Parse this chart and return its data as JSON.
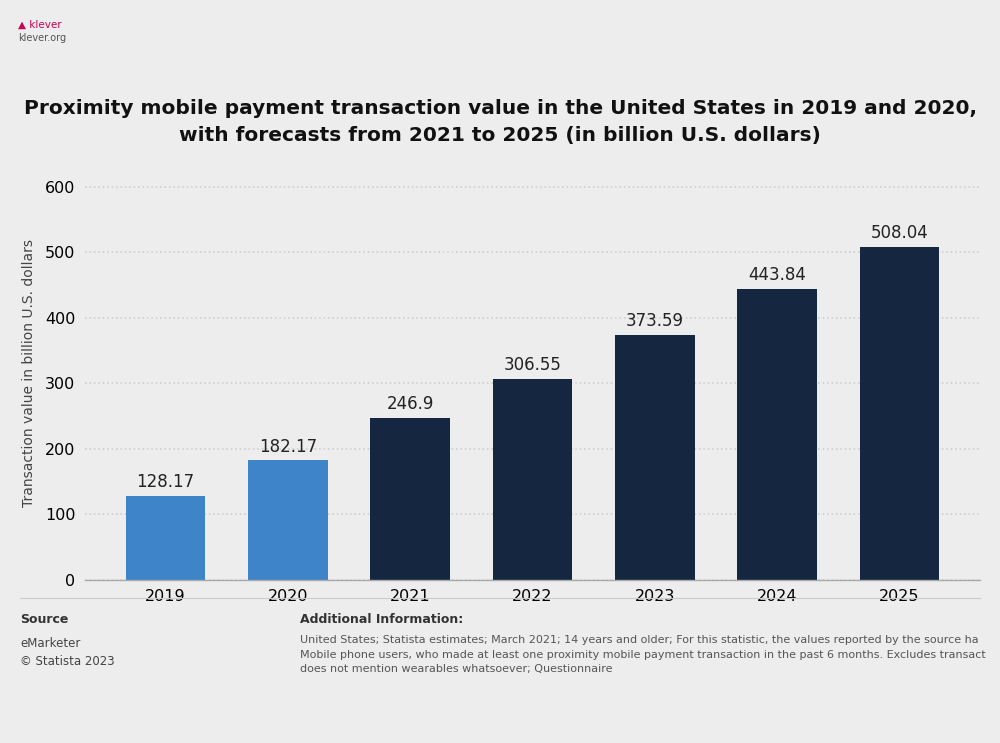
{
  "categories": [
    "2019",
    "2020",
    "2021",
    "2022",
    "2023",
    "2024",
    "2025"
  ],
  "values": [
    128.17,
    182.17,
    246.9,
    306.55,
    373.59,
    443.84,
    508.04
  ],
  "bar_colors": [
    "#3d85c8",
    "#3d85c8",
    "#152740",
    "#152740",
    "#152740",
    "#152740",
    "#152740"
  ],
  "title": "Proximity mobile payment transaction value in the United States in 2019 and 2020,\nwith forecasts from 2021 to 2025 (in billion U.S. dollars)",
  "ylabel": "Transaction value in billion U.S. dollars",
  "ylim": [
    0,
    630
  ],
  "yticks": [
    0,
    100,
    200,
    300,
    400,
    500,
    600
  ],
  "background_color": "#ededed",
  "plot_bg_color": "#ededed",
  "grid_color": "#d0d0d0",
  "bar_label_fontsize": 12,
  "ylabel_fontsize": 10,
  "title_fontsize": 14.5,
  "tick_fontsize": 11.5,
  "source_label": "Source",
  "source_text": "eMarketer\n© Statista 2023",
  "additional_info_title": "Additional Information:",
  "additional_info_text": "United States; Statista estimates; March 2021; 14 years and older; For this statistic, the values reported by the source ha\nMobile phone users, who made at least one proximity mobile payment transaction in the past 6 months. Excludes transact\ndoes not mention wearables whatsoever; Questionnaire"
}
